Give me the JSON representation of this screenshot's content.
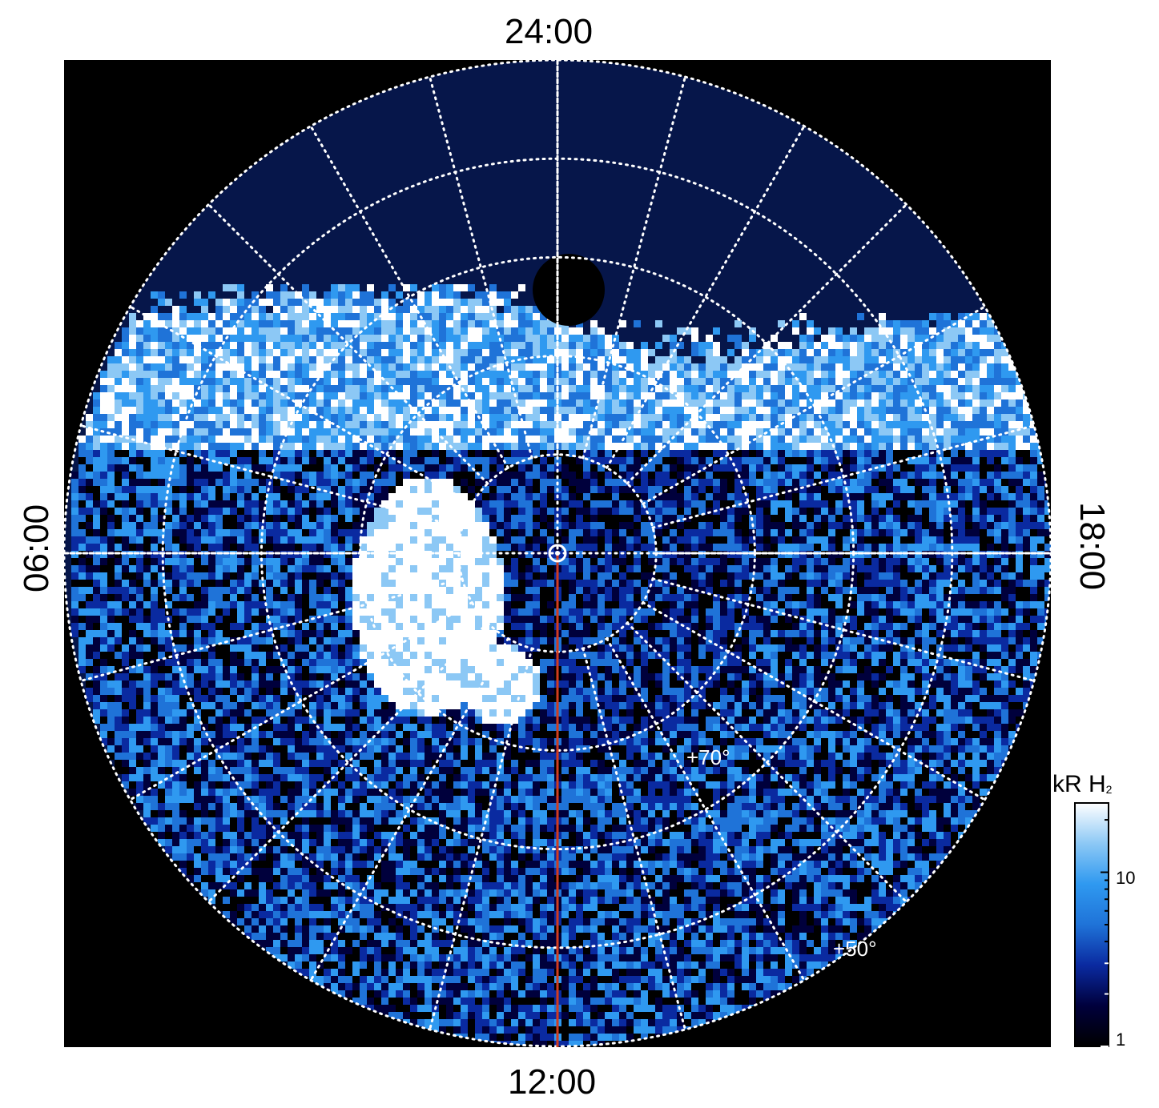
{
  "chart_data": {
    "type": "heatmap",
    "projection": "polar",
    "local_time_labels": {
      "top": "24:00",
      "bottom": "12:00",
      "left": "06:00",
      "right": "18:00"
    },
    "latitude_labels": [
      {
        "value": 70,
        "text": "+70°"
      },
      {
        "value": 50,
        "text": "+50°"
      }
    ],
    "colorbar": {
      "title": "kR H",
      "title_sub": "2",
      "scale": "log",
      "range": [
        1,
        25
      ],
      "ticks": [
        {
          "value": 1,
          "text": "1"
        },
        {
          "value": 10,
          "text": "10"
        }
      ],
      "colors": [
        "#000000",
        "#00003c",
        "#0a2aa0",
        "#1f73d8",
        "#2f99f0",
        "#8cc8f5",
        "#ffffff"
      ]
    },
    "grid": {
      "type": "dotted",
      "color": "#ffffff",
      "longitude_step_hours": 1,
      "latitude_rings": [
        40,
        50,
        60,
        70,
        80
      ]
    },
    "reference_line": {
      "color": "#d23c1e",
      "local_time": "12:00"
    },
    "background_color": "#000000"
  }
}
